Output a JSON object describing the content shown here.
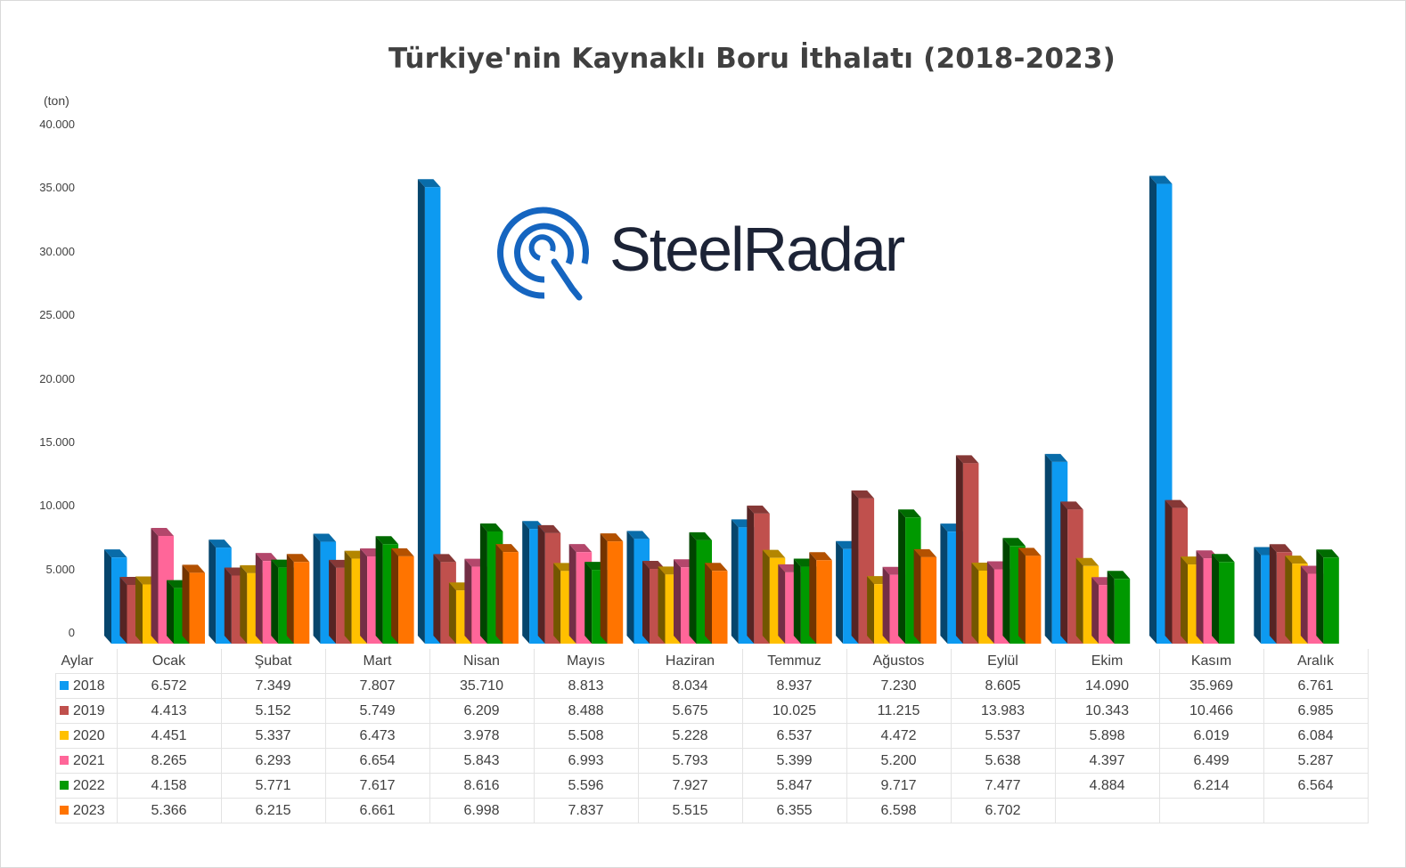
{
  "chart_data": {
    "type": "bar",
    "title": "Türkiye'nin Kaynaklı Boru İthalatı (2018-2023)",
    "ylabel": "(ton)",
    "xlabel": "Aylar",
    "ylim": [
      0,
      40000
    ],
    "yticks": [
      "0",
      "5.000",
      "10.000",
      "15.000",
      "20.000",
      "25.000",
      "30.000",
      "35.000",
      "40.000"
    ],
    "categories": [
      "Ocak",
      "Şubat",
      "Mart",
      "Nisan",
      "Mayıs",
      "Haziran",
      "Temmuz",
      "Ağustos",
      "Eylül",
      "Ekim",
      "Kasım",
      "Aralık"
    ],
    "series": [
      {
        "name": "2018",
        "color": "#0d9af1",
        "values": [
          6572,
          7349,
          7807,
          35710,
          8813,
          8034,
          8937,
          7230,
          8605,
          14090,
          35969,
          6761
        ],
        "labels": [
          "6.572",
          "7.349",
          "7.807",
          "35.710",
          "8.813",
          "8.034",
          "8.937",
          "7.230",
          "8.605",
          "14.090",
          "35.969",
          "6.761"
        ]
      },
      {
        "name": "2019",
        "color": "#c0504d",
        "values": [
          4413,
          5152,
          5749,
          6209,
          8488,
          5675,
          10025,
          11215,
          13983,
          10343,
          10466,
          6985
        ],
        "labels": [
          "4.413",
          "5.152",
          "5.749",
          "6.209",
          "8.488",
          "5.675",
          "10.025",
          "11.215",
          "13.983",
          "10.343",
          "10.466",
          "6.985"
        ]
      },
      {
        "name": "2020",
        "color": "#ffc000",
        "values": [
          4451,
          5337,
          6473,
          3978,
          5508,
          5228,
          6537,
          4472,
          5537,
          5898,
          6019,
          6084
        ],
        "labels": [
          "4.451",
          "5.337",
          "6.473",
          "3.978",
          "5.508",
          "5.228",
          "6.537",
          "4.472",
          "5.537",
          "5.898",
          "6.019",
          "6.084"
        ]
      },
      {
        "name": "2021",
        "color": "#ff6699",
        "values": [
          8265,
          6293,
          6654,
          5843,
          6993,
          5793,
          5399,
          5200,
          5638,
          4397,
          6499,
          5287
        ],
        "labels": [
          "8.265",
          "6.293",
          "6.654",
          "5.843",
          "6.993",
          "5.793",
          "5.399",
          "5.200",
          "5.638",
          "4.397",
          "6.499",
          "5.287"
        ]
      },
      {
        "name": "2022",
        "color": "#009900",
        "values": [
          4158,
          5771,
          7617,
          8616,
          5596,
          7927,
          5847,
          9717,
          7477,
          4884,
          6214,
          6564
        ],
        "labels": [
          "4.158",
          "5.771",
          "7.617",
          "8.616",
          "5.596",
          "7.927",
          "5.847",
          "9.717",
          "7.477",
          "4.884",
          "6.214",
          "6.564"
        ]
      },
      {
        "name": "2023",
        "color": "#ff7400",
        "values": [
          5366,
          6215,
          6661,
          6998,
          7837,
          5515,
          6355,
          6598,
          6702,
          null,
          null,
          null
        ],
        "labels": [
          "5.366",
          "6.215",
          "6.661",
          "6.998",
          "7.837",
          "5.515",
          "6.355",
          "6.598",
          "6.702",
          "",
          "",
          ""
        ]
      }
    ],
    "legend_placement": "data-table",
    "grid": false
  },
  "logo": {
    "text": "SteelRadar",
    "color": "#1565c0"
  }
}
